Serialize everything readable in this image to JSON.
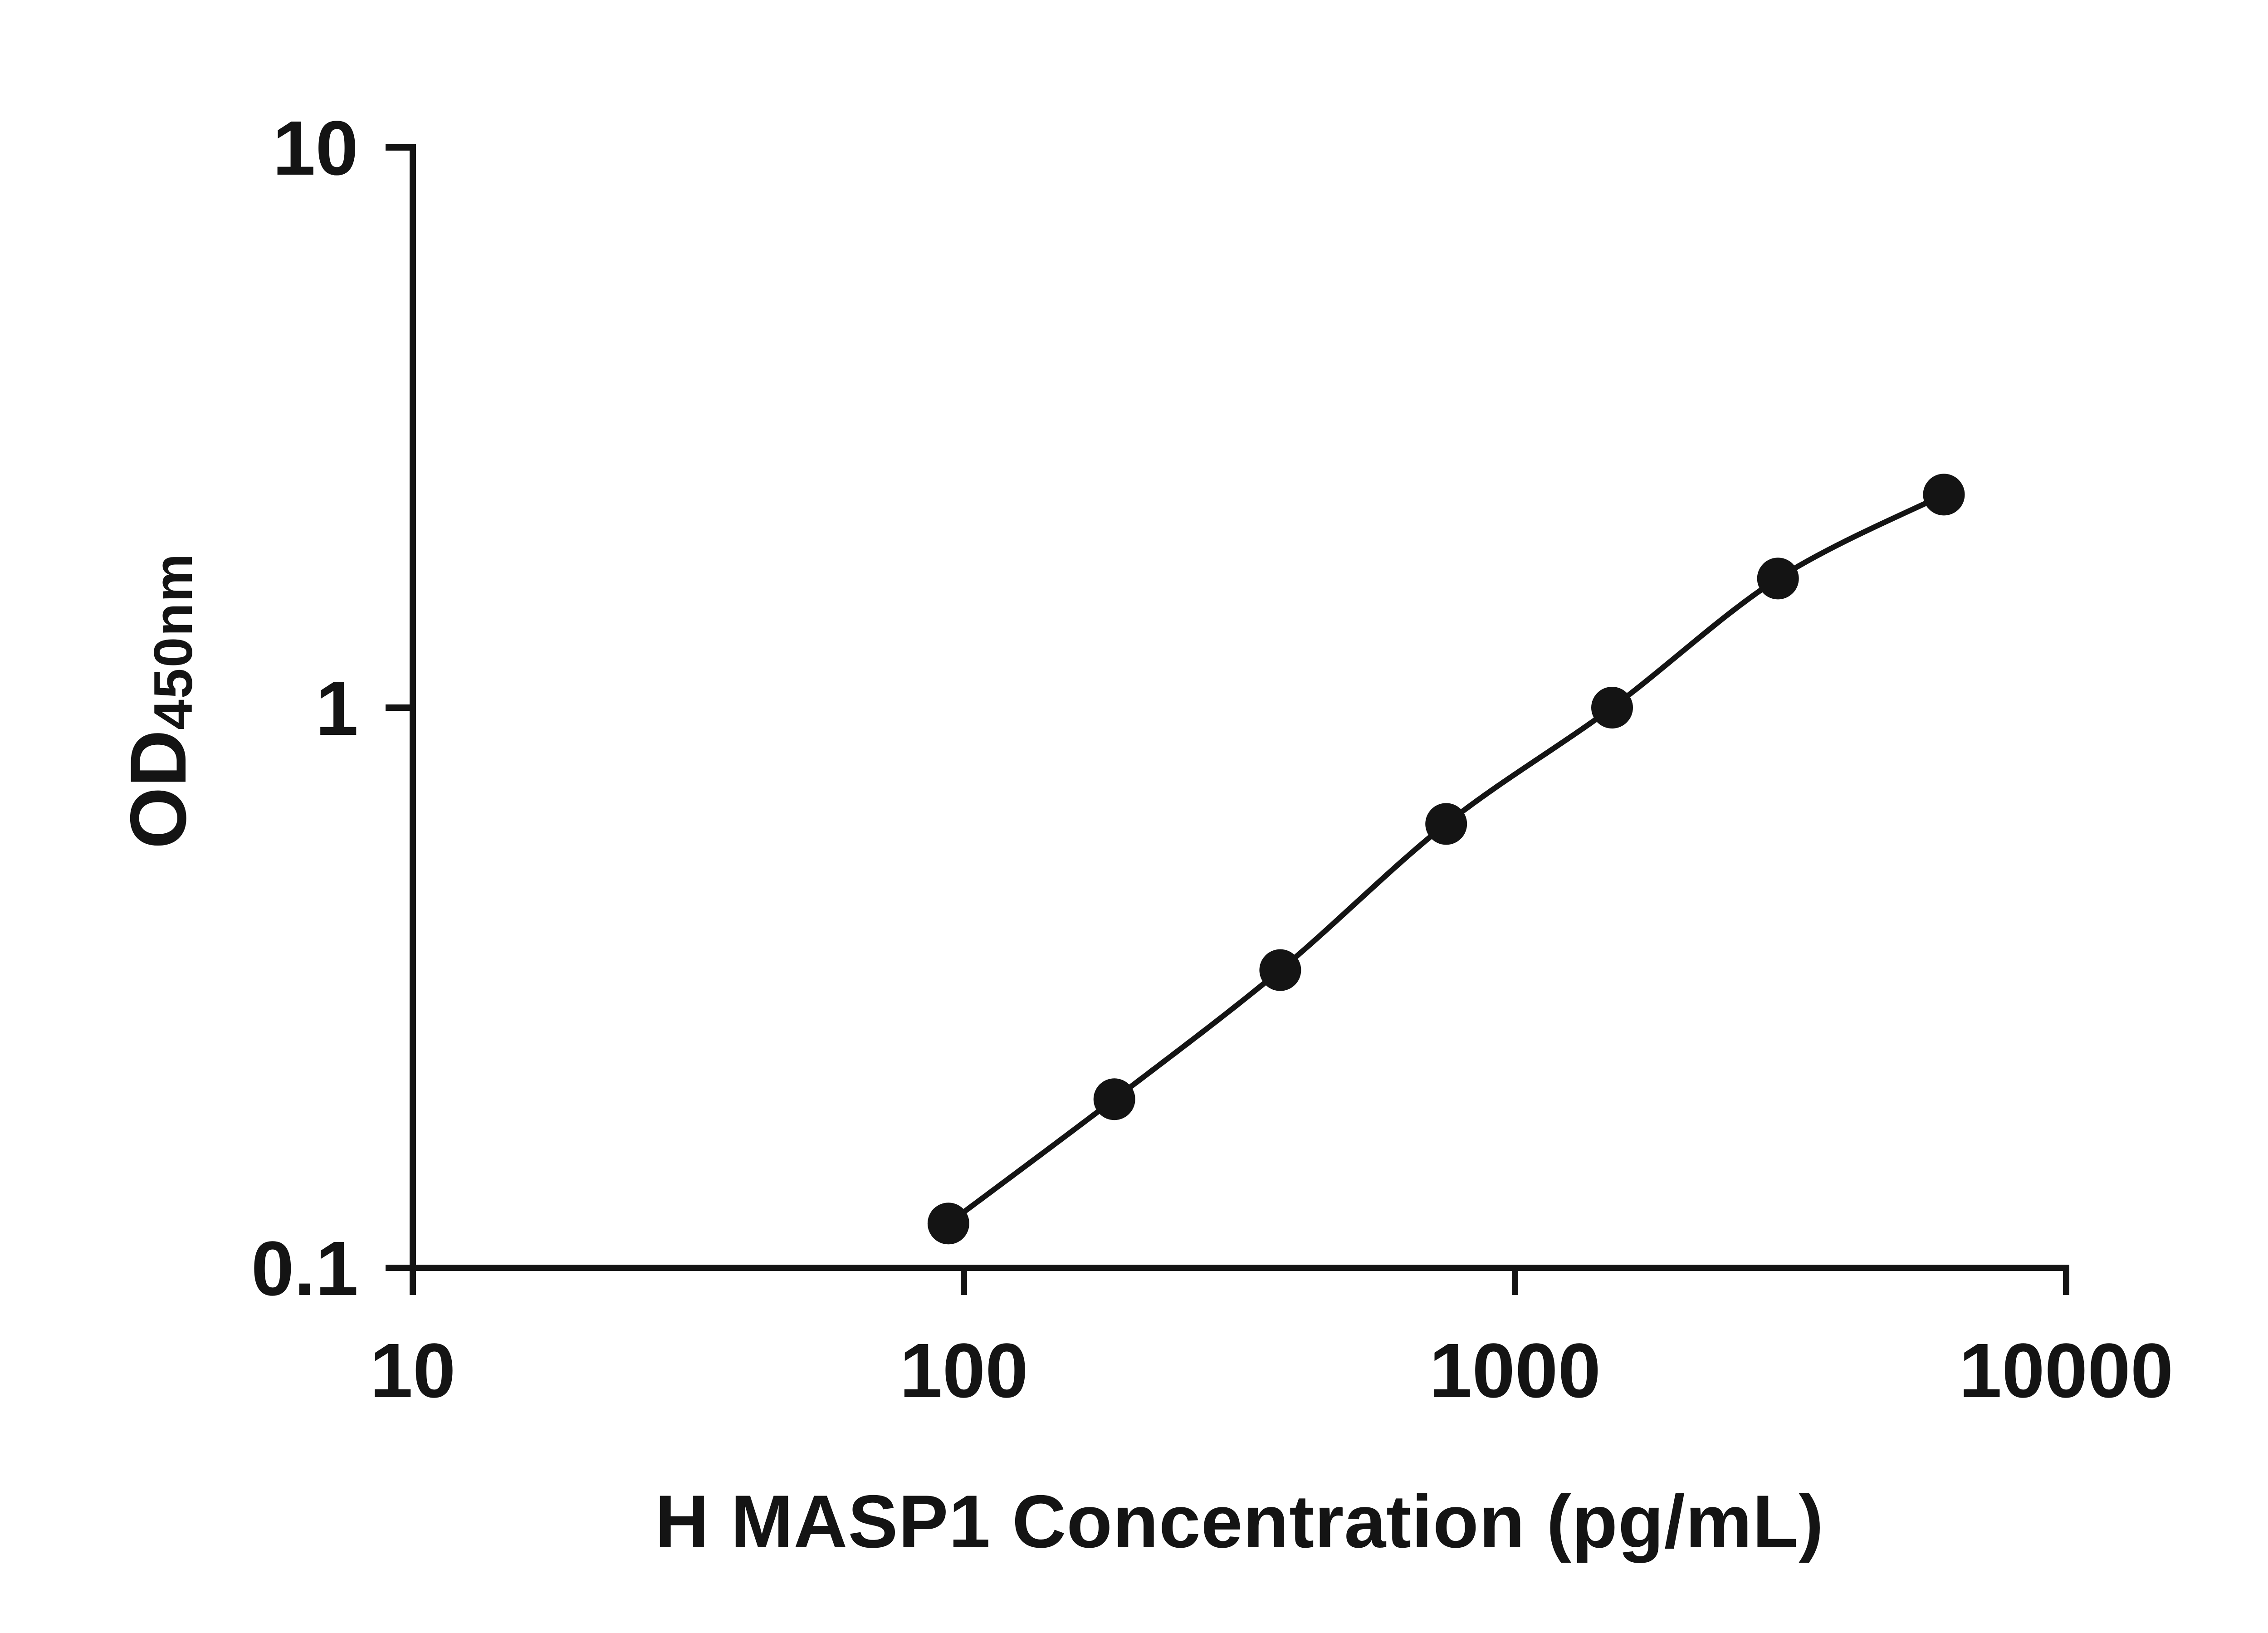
{
  "page": {
    "background": "#ffffff"
  },
  "chart_data": {
    "type": "scatter",
    "title": "H MASP1 Concentration (pg/mL)",
    "ylabel_main": "OD",
    "ylabel_sub": "450nm",
    "x_scale": "log10",
    "y_scale": "log10",
    "xlim": [
      10,
      10000
    ],
    "ylim": [
      0.1,
      10
    ],
    "grid": "off",
    "legend": "none",
    "x_ticks": [
      {
        "value": 10,
        "label": "10"
      },
      {
        "value": 100,
        "label": "100"
      },
      {
        "value": 1000,
        "label": "1000"
      },
      {
        "value": 10000,
        "label": "10000"
      }
    ],
    "y_ticks": [
      {
        "value": 0.1,
        "label": "0.1"
      },
      {
        "value": 1,
        "label": "1"
      },
      {
        "value": 10,
        "label": "10"
      }
    ],
    "points": [
      {
        "x": 93.75,
        "y": 0.12
      },
      {
        "x": 187.5,
        "y": 0.2
      },
      {
        "x": 375,
        "y": 0.34
      },
      {
        "x": 750,
        "y": 0.62
      },
      {
        "x": 1500,
        "y": 1.0
      },
      {
        "x": 3000,
        "y": 1.7
      },
      {
        "x": 6000,
        "y": 2.4
      }
    ],
    "curve": "smooth-through-points",
    "axis_color": "#141414",
    "line_color": "#141414",
    "marker_color": "#141414"
  }
}
